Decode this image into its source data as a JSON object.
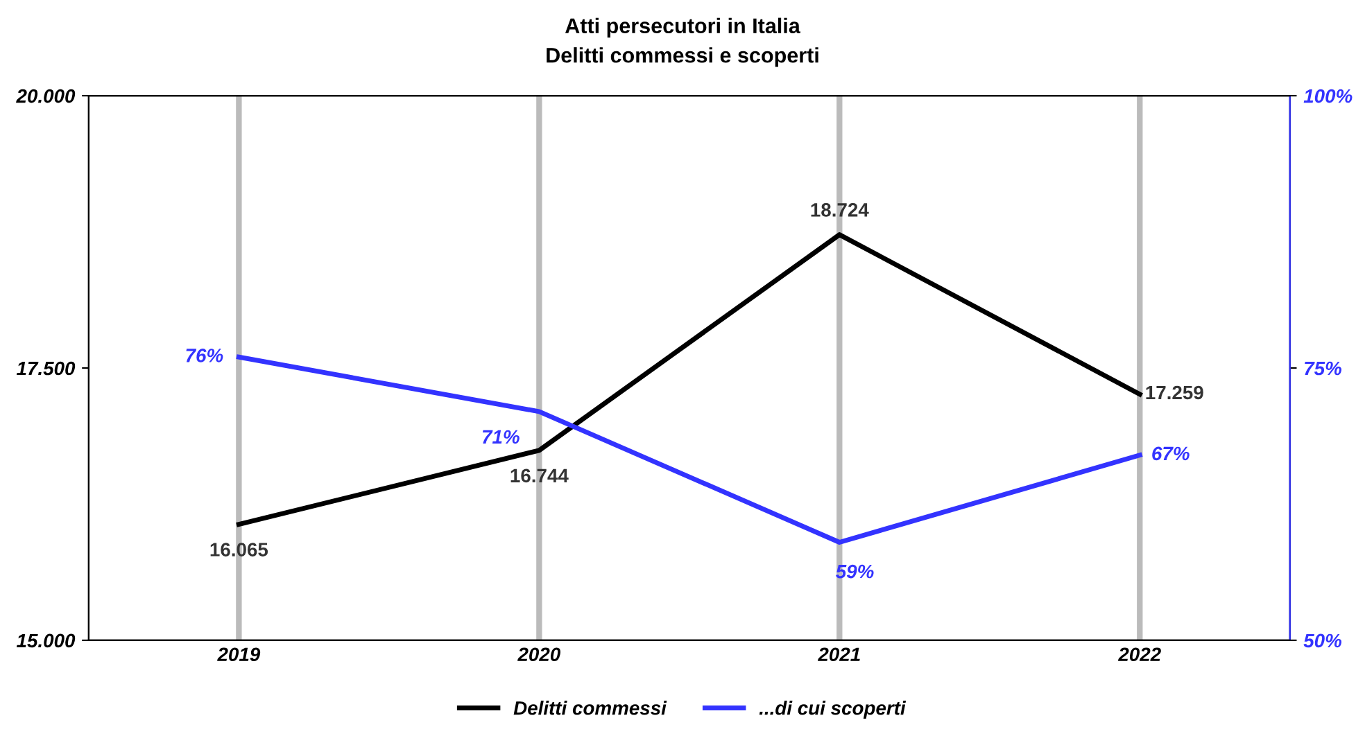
{
  "chart_data": {
    "type": "line",
    "title": "Atti persecutori in Italia",
    "subtitle": "Delitti commessi e scoperti",
    "categories": [
      "2019",
      "2020",
      "2021",
      "2022"
    ],
    "series": [
      {
        "name": "Delitti commessi",
        "color": "#000000",
        "values": [
          16065,
          16744,
          18724,
          17259
        ],
        "value_labels": [
          "16.065",
          "16.744",
          "18.724",
          "17.259"
        ]
      },
      {
        "name": "...di cui scoperti",
        "color": "#3333ff",
        "axis": "y2",
        "values": [
          76,
          71,
          59,
          67
        ],
        "value_labels": [
          "76%",
          "71%",
          "59%",
          "67%"
        ]
      }
    ],
    "ylim": [
      15000,
      20000
    ],
    "yticks": [
      {
        "value": 15000,
        "label": "15.000"
      },
      {
        "value": 17500,
        "label": "17.500"
      },
      {
        "value": 20000,
        "label": "20.000"
      }
    ],
    "y2lim": [
      50,
      100
    ],
    "y2ticks": [
      {
        "value": 50,
        "label": "50%"
      },
      {
        "value": 75,
        "label": "75%"
      },
      {
        "value": 100,
        "label": "100%"
      }
    ],
    "grid": "x",
    "legend": "bottom",
    "marker": "none",
    "line_style": "solid"
  }
}
